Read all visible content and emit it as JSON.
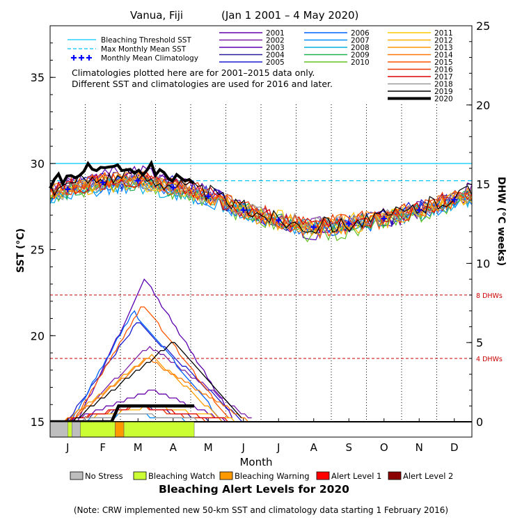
{
  "chart_data": {
    "type": "line",
    "title_location": "Vanua, Fiji",
    "title_range": "(Jan 1 2001 – 4 May 2020)",
    "xlabel": "Month",
    "ylabel_left": "SST (°C)",
    "ylabel_right": "DHW (°C weeks)",
    "x_ticks": [
      "J",
      "F",
      "M",
      "A",
      "M",
      "J",
      "J",
      "A",
      "S",
      "O",
      "N",
      "D"
    ],
    "y_left_ticks": [
      15,
      20,
      25,
      30,
      35
    ],
    "y_left_range": [
      15,
      38
    ],
    "y_right_ticks": [
      0,
      5,
      10,
      15,
      20,
      25
    ],
    "y_right_range": [
      0,
      25
    ],
    "bleaching_threshold_sst": 30.0,
    "max_monthly_mean_sst": 29.0,
    "dhw_ref_lines": [
      {
        "label": "8 DHWs",
        "value": 8,
        "color": "#cc0000"
      },
      {
        "label": "4 DHWs",
        "value": 4,
        "color": "#cc0000"
      }
    ],
    "legend_refs": [
      {
        "label": "Bleaching Threshold SST",
        "color": "#00c8ff",
        "style": "solid"
      },
      {
        "label": "Max Monthly Mean SST",
        "color": "#00c8ff",
        "style": "dashed"
      },
      {
        "label": "Monthly Mean Climatology",
        "color": "#0000ff",
        "style": "plus"
      }
    ],
    "note_line1": "Climatologies plotted here are for 2001–2015 data only.",
    "note_line2": "Different SST and climatologies are used for 2016 and later.",
    "monthly_mean_climatology_x": [
      0.5,
      1.5,
      2.5,
      3.5,
      4.5,
      5.5,
      6.5,
      7.5,
      8.5,
      9.5,
      10.5,
      11.5
    ],
    "monthly_mean_climatology": [
      28.5,
      28.9,
      29.0,
      28.6,
      28.1,
      27.3,
      26.7,
      26.3,
      26.5,
      26.8,
      27.3,
      27.9
    ],
    "series": [
      {
        "name": "2001",
        "color": "#6600aa",
        "amp": 1.15,
        "off": 0.05,
        "dhw_peak": 2.0
      },
      {
        "name": "2002",
        "color": "#7a1fa8",
        "amp": 1.0,
        "off": 0.1,
        "dhw_peak": 4.8
      },
      {
        "name": "2003",
        "color": "#5a00b0",
        "amp": 1.3,
        "off": 0.2,
        "dhw_peak": 9.0
      },
      {
        "name": "2004",
        "color": "#2a1a9a",
        "amp": 1.0,
        "off": -0.05,
        "dhw_peak": 1.0
      },
      {
        "name": "2005",
        "color": "#1a1ad0",
        "amp": 1.05,
        "off": 0.15,
        "dhw_peak": 6.3
      },
      {
        "name": "2006",
        "color": "#0060ff",
        "amp": 1.0,
        "off": -0.1,
        "dhw_peak": 7.0
      },
      {
        "name": "2007",
        "color": "#0090ff",
        "amp": 0.95,
        "off": -0.2,
        "dhw_peak": 0.5
      },
      {
        "name": "2008",
        "color": "#00b0e0",
        "amp": 0.9,
        "off": -0.15,
        "dhw_peak": 0.0
      },
      {
        "name": "2009",
        "color": "#20b050",
        "amp": 0.95,
        "off": -0.05,
        "dhw_peak": 0.0
      },
      {
        "name": "2010",
        "color": "#60c020",
        "amp": 1.1,
        "off": -0.25,
        "dhw_peak": 0.0
      },
      {
        "name": "2011",
        "color": "#ffcc00",
        "amp": 0.9,
        "off": 0.0,
        "dhw_peak": 0.0
      },
      {
        "name": "2012",
        "color": "#ffb000",
        "amp": 1.0,
        "off": -0.1,
        "dhw_peak": 1.0
      },
      {
        "name": "2013",
        "color": "#ff9900",
        "amp": 1.05,
        "off": 0.05,
        "dhw_peak": 4.2
      },
      {
        "name": "2014",
        "color": "#ff7700",
        "amp": 1.0,
        "off": 0.1,
        "dhw_peak": 4.0
      },
      {
        "name": "2015",
        "color": "#ff5500",
        "amp": 1.1,
        "off": 0.0,
        "dhw_peak": 7.4
      },
      {
        "name": "2016",
        "color": "#ee3300",
        "amp": 1.0,
        "off": 0.15,
        "dhw_peak": 1.0
      },
      {
        "name": "2017",
        "color": "#dd0000",
        "amp": 1.05,
        "off": 0.05,
        "dhw_peak": 1.0
      },
      {
        "name": "2018",
        "color": "#999999",
        "amp": 0.95,
        "off": 0.0,
        "dhw_peak": 0.5
      },
      {
        "name": "2019",
        "color": "#000000",
        "amp": 1.1,
        "off": 0.2,
        "dhw_peak": 5.0
      },
      {
        "name": "2020",
        "color": "#000000",
        "amp": 1.0,
        "off": 0.3,
        "dhw_peak": 1.0,
        "bold": true
      }
    ],
    "alert_bar_2020": [
      {
        "from": 0.0,
        "to": 0.5,
        "level": "No Stress"
      },
      {
        "from": 0.5,
        "to": 0.62,
        "level": "Bleaching Watch"
      },
      {
        "from": 0.62,
        "to": 0.86,
        "level": "No Stress"
      },
      {
        "from": 0.86,
        "to": 1.85,
        "level": "Bleaching Watch"
      },
      {
        "from": 1.85,
        "to": 2.1,
        "level": "Bleaching Warning"
      },
      {
        "from": 2.1,
        "to": 4.1,
        "level": "Bleaching Watch"
      }
    ]
  },
  "alert_legend": [
    {
      "label": "No Stress",
      "color": "#bebebe"
    },
    {
      "label": "Bleaching Watch",
      "color": "#ccff33"
    },
    {
      "label": "Bleaching Warning",
      "color": "#ff9900"
    },
    {
      "label": "Alert Level 1",
      "color": "#ff0000"
    },
    {
      "label": "Alert Level 2",
      "color": "#8b0000"
    }
  ],
  "footer_title": "Bleaching Alert Levels for 2020",
  "footer_note": "(Note: CRW implemented new 50-km SST and climatology data starting 1 February 2016)"
}
